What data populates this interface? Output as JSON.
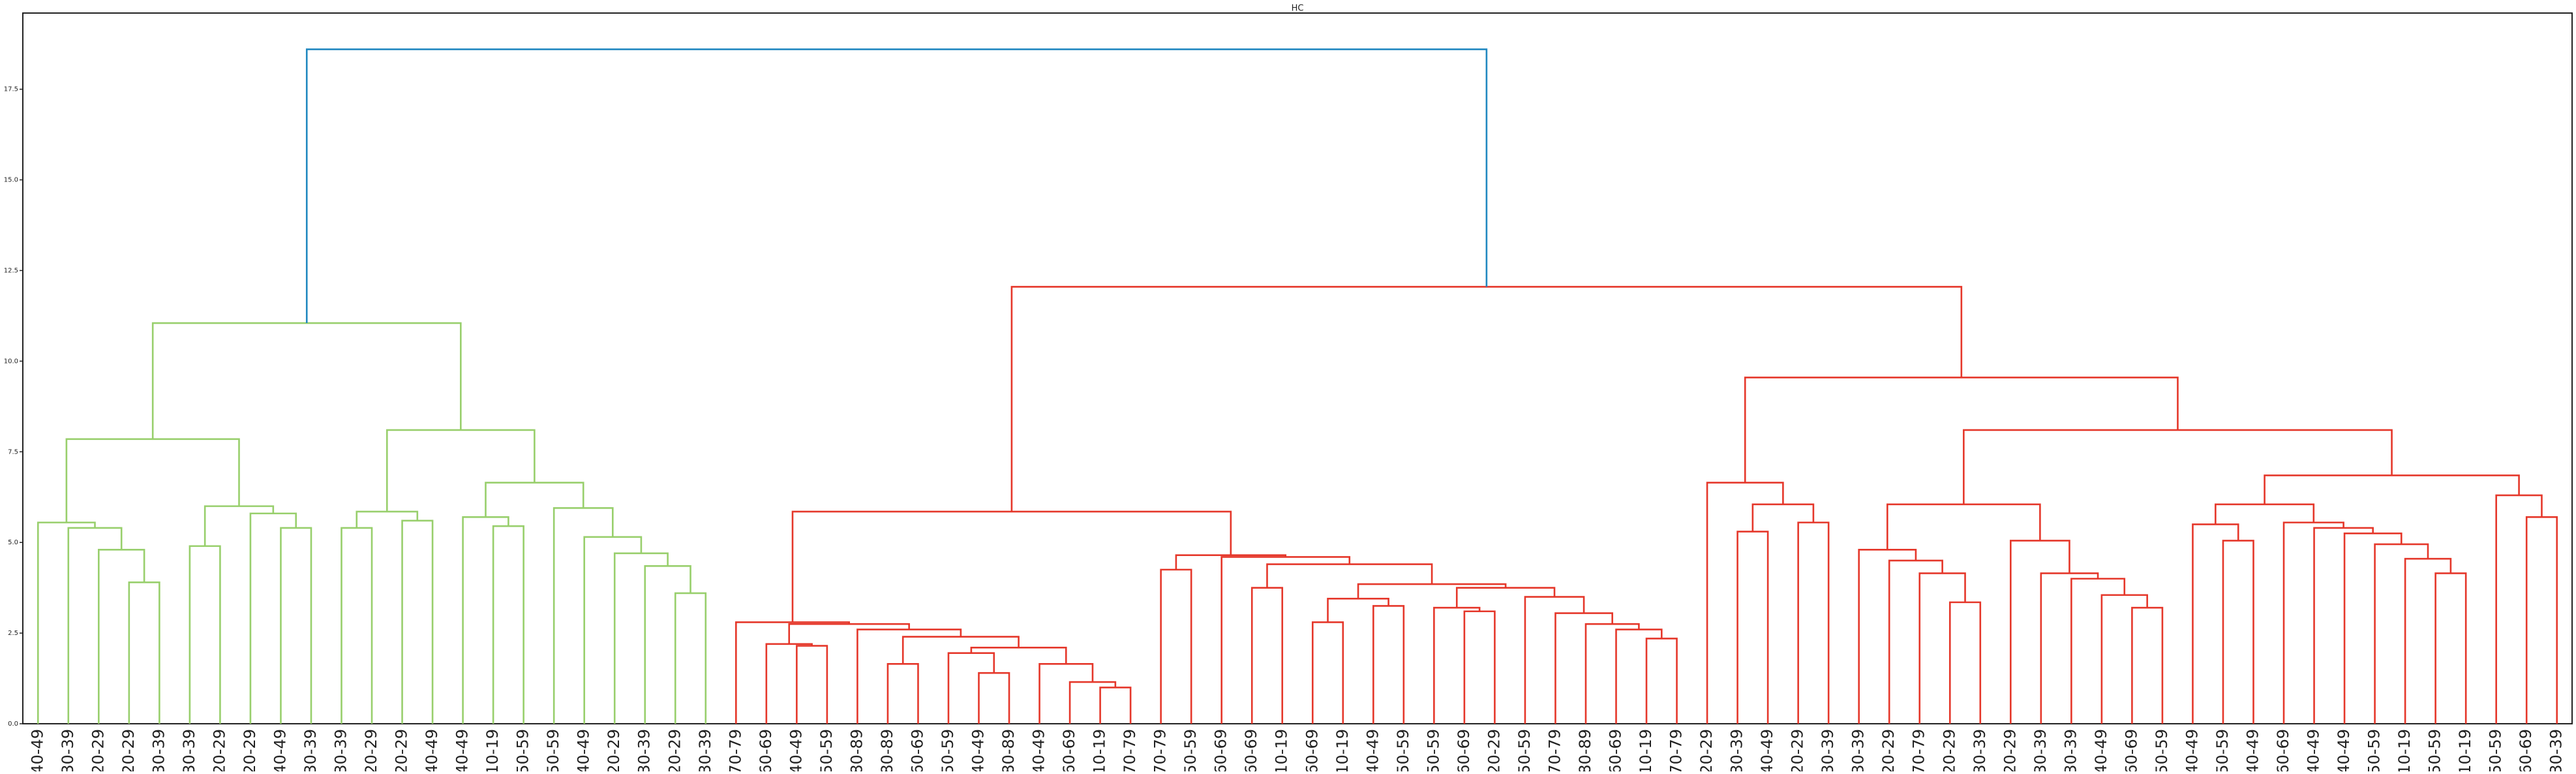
{
  "chart_data": {
    "type": "dendrogram",
    "title": "HC",
    "leaves": [
      "40-49",
      "30-39",
      "20-29",
      "20-29",
      "30-39",
      "30-39",
      "20-29",
      "20-29",
      "40-49",
      "30-39",
      "30-39",
      "20-29",
      "20-29",
      "40-49",
      "40-49",
      "10-19",
      "50-59",
      "50-59",
      "40-49",
      "20-29",
      "30-39",
      "20-29",
      "30-39",
      "70-79",
      "60-69",
      "40-49",
      "50-59",
      "80-89",
      "80-89",
      "60-69",
      "50-59",
      "40-49",
      "80-89",
      "40-49",
      "60-69",
      "10-19",
      "70-79",
      "70-79",
      "50-59",
      "60-69",
      "60-69",
      "10-19",
      "60-69",
      "10-19",
      "40-49",
      "50-59",
      "50-59",
      "60-69",
      "20-29",
      "50-59",
      "70-79",
      "80-89",
      "60-69",
      "10-19",
      "70-79",
      "20-29",
      "30-39",
      "40-49",
      "20-29",
      "30-39",
      "30-39",
      "20-29",
      "70-79",
      "20-29",
      "30-39",
      "20-29",
      "30-39",
      "30-39",
      "40-49",
      "60-69",
      "50-59",
      "40-49",
      "50-59",
      "40-49",
      "60-69",
      "40-49",
      "40-49",
      "50-59",
      "10-19",
      "50-59",
      "10-19",
      "50-59",
      "60-69",
      "30-39"
    ],
    "clusters": [
      {
        "color": "#98cf6c",
        "links": [
          [
            3,
            4,
            3.9
          ],
          [
            2,
            84,
            4.8
          ],
          [
            1,
            85,
            5.4
          ],
          [
            0,
            86,
            5.55
          ],
          [
            5,
            6,
            4.9
          ],
          [
            8,
            9,
            5.4
          ],
          [
            7,
            89,
            5.8
          ],
          [
            88,
            90,
            6.0
          ],
          [
            87,
            91,
            7.85
          ],
          [
            10,
            11,
            5.4
          ],
          [
            12,
            13,
            5.6
          ],
          [
            93,
            94,
            5.85
          ],
          [
            15,
            16,
            5.45
          ],
          [
            14,
            96,
            5.7
          ],
          [
            21,
            22,
            3.6
          ],
          [
            20,
            98,
            4.35
          ],
          [
            19,
            99,
            4.7
          ],
          [
            18,
            100,
            5.15
          ],
          [
            17,
            101,
            5.95
          ],
          [
            97,
            102,
            6.65
          ],
          [
            95,
            103,
            8.1
          ],
          [
            92,
            104,
            11.05
          ]
        ]
      },
      {
        "color": "#e5372a",
        "links": [
          [
            25,
            26,
            2.15
          ],
          [
            24,
            106,
            2.2
          ],
          [
            28,
            29,
            1.65
          ],
          [
            31,
            32,
            1.4
          ],
          [
            30,
            109,
            1.95
          ],
          [
            35,
            36,
            1.0
          ],
          [
            34,
            111,
            1.15
          ],
          [
            33,
            112,
            1.65
          ],
          [
            110,
            113,
            2.1
          ],
          [
            108,
            114,
            2.4
          ],
          [
            27,
            115,
            2.6
          ],
          [
            107,
            116,
            2.75
          ],
          [
            23,
            117,
            2.8
          ],
          [
            37,
            38,
            4.25
          ],
          [
            40,
            41,
            3.75
          ],
          [
            42,
            43,
            2.8
          ],
          [
            44,
            45,
            3.25
          ],
          [
            121,
            122,
            3.45
          ],
          [
            47,
            48,
            3.1
          ],
          [
            46,
            124,
            3.2
          ],
          [
            53,
            54,
            2.35
          ],
          [
            52,
            126,
            2.6
          ],
          [
            51,
            127,
            2.75
          ],
          [
            50,
            128,
            3.05
          ],
          [
            49,
            129,
            3.5
          ],
          [
            125,
            130,
            3.75
          ],
          [
            123,
            131,
            3.85
          ],
          [
            120,
            132,
            4.4
          ],
          [
            39,
            133,
            4.6
          ],
          [
            119,
            134,
            4.65
          ],
          [
            118,
            135,
            5.85
          ],
          [
            56,
            57,
            5.3
          ],
          [
            58,
            59,
            5.55
          ],
          [
            137,
            138,
            6.05
          ],
          [
            55,
            139,
            6.65
          ],
          [
            63,
            64,
            3.35
          ],
          [
            62,
            141,
            4.15
          ],
          [
            61,
            142,
            4.5
          ],
          [
            60,
            143,
            4.8
          ],
          [
            69,
            70,
            3.2
          ],
          [
            68,
            145,
            3.55
          ],
          [
            67,
            146,
            4.0
          ],
          [
            66,
            147,
            4.15
          ],
          [
            65,
            148,
            5.05
          ],
          [
            144,
            149,
            6.05
          ],
          [
            72,
            73,
            5.05
          ],
          [
            71,
            151,
            5.5
          ],
          [
            79,
            80,
            4.15
          ],
          [
            78,
            153,
            4.55
          ],
          [
            77,
            154,
            4.95
          ],
          [
            76,
            155,
            5.25
          ],
          [
            75,
            156,
            5.4
          ],
          [
            74,
            157,
            5.55
          ],
          [
            152,
            158,
            6.05
          ],
          [
            82,
            83,
            5.7
          ],
          [
            81,
            160,
            6.3
          ],
          [
            159,
            161,
            6.85
          ],
          [
            150,
            162,
            8.1
          ],
          [
            140,
            163,
            9.55
          ],
          [
            136,
            164,
            12.05
          ]
        ]
      },
      {
        "color": "#2188c0",
        "links": [
          [
            105,
            165,
            18.6
          ]
        ]
      }
    ],
    "ylim": [
      0,
      19.6
    ],
    "yticks": [
      {
        "value": 0,
        "label": "0.0"
      },
      2.5,
      {
        "value": 5,
        "label": "5.0"
      },
      7.5,
      {
        "value": 10,
        "label": "10.0"
      },
      12.5,
      {
        "value": 15,
        "label": "15.0"
      },
      17.5
    ]
  }
}
